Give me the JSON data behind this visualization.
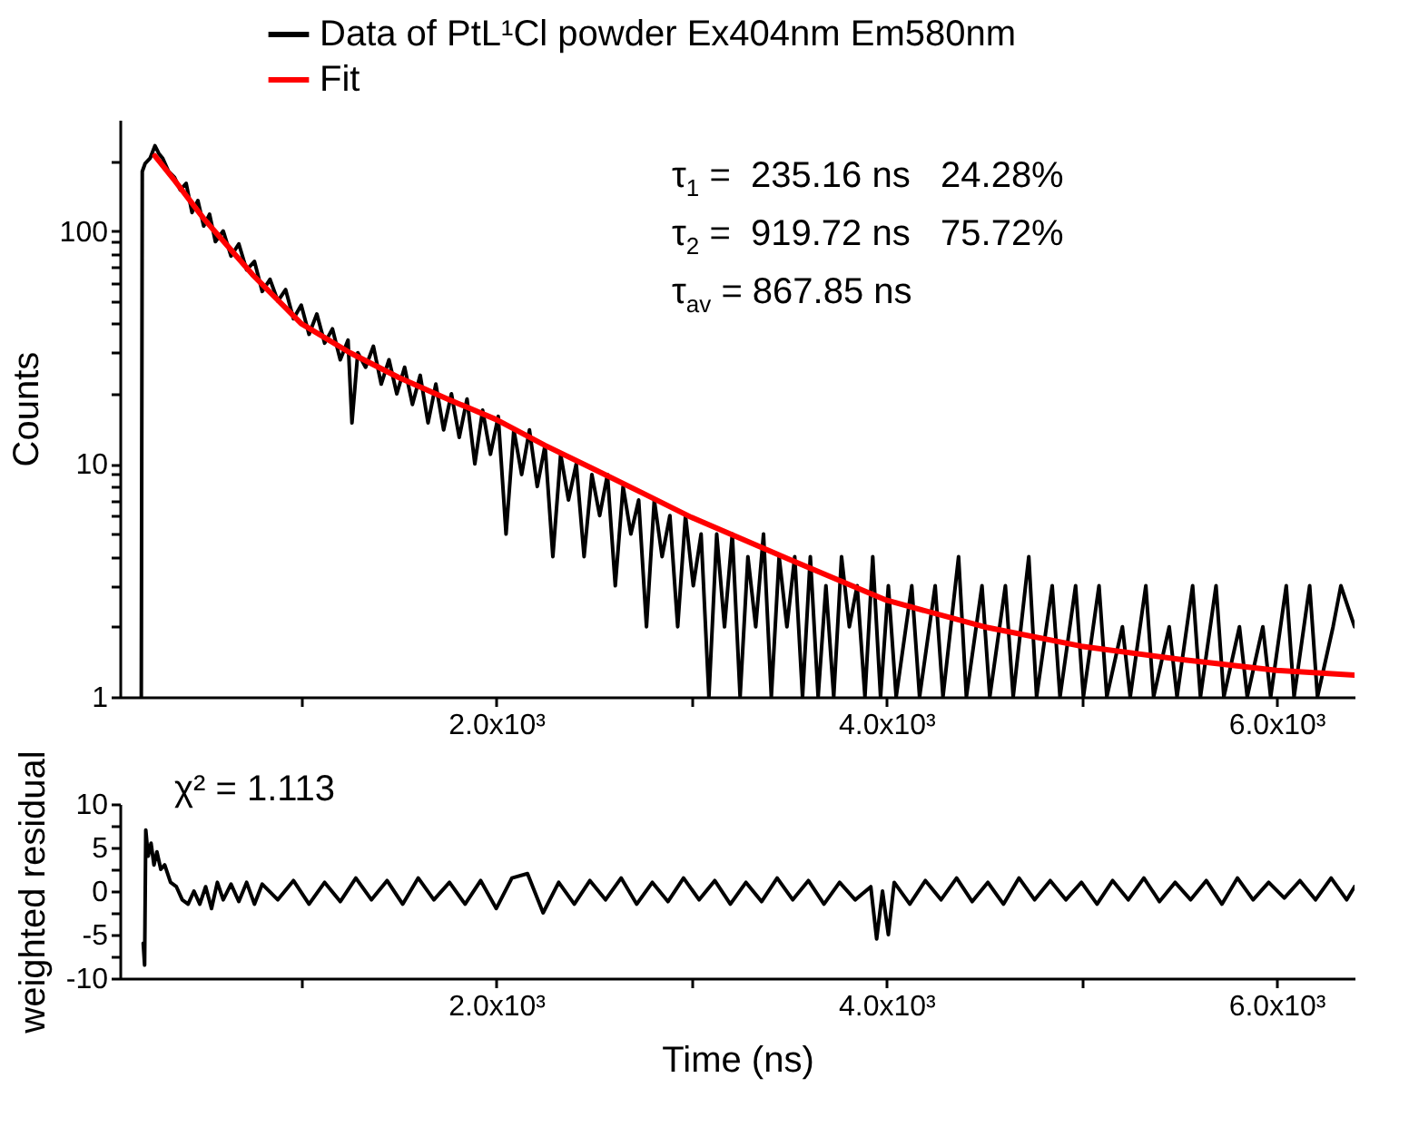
{
  "chart_data": [
    {
      "type": "line",
      "ylabel": "Counts",
      "log": "y",
      "legend": "top",
      "grid": false,
      "xlim": [
        70,
        6400
      ],
      "ylim": [
        1,
        300
      ],
      "xticks": [
        {
          "value": 1000,
          "label": null
        },
        {
          "value": 2000,
          "label": "2.0x10³"
        },
        {
          "value": 3000,
          "label": null
        },
        {
          "value": 4000,
          "label": "4.0x10³"
        },
        {
          "value": 5000,
          "label": null
        },
        {
          "value": 6000,
          "label": "6.0x10³"
        }
      ],
      "yticks": [
        1,
        {
          "value": 2,
          "label": null
        },
        {
          "value": 3,
          "label": null
        },
        {
          "value": 4,
          "label": null
        },
        {
          "value": 5,
          "label": null
        },
        {
          "value": 6,
          "label": null
        },
        {
          "value": 7,
          "label": null
        },
        {
          "value": 8,
          "label": null
        },
        {
          "value": 9,
          "label": null
        },
        10,
        {
          "value": 20,
          "label": null
        },
        {
          "value": 30,
          "label": null
        },
        {
          "value": 40,
          "label": null
        },
        {
          "value": 50,
          "label": null
        },
        {
          "value": 60,
          "label": null
        },
        {
          "value": 70,
          "label": null
        },
        {
          "value": 80,
          "label": null
        },
        {
          "value": 90,
          "label": null
        },
        100,
        {
          "value": 200,
          "label": null
        }
      ],
      "annotations": [
        "τ$_{1}$ =  235.16 ns   24.28%",
        "τ$_{2}$ =  919.72 ns   75.72%",
        "τ$_{av}$ = 867.85 ns"
      ],
      "series": [
        {
          "name": "Data of PtL¹Cl powder Ex404nm Em580nm",
          "color": "#000000",
          "x": [
            180,
            185,
            200,
            225,
            250,
            270,
            290,
            320,
            350,
            380,
            410,
            440,
            470,
            500,
            530,
            560,
            600,
            640,
            680,
            720,
            760,
            800,
            840,
            880,
            920,
            960,
            1000,
            1040,
            1080,
            1120,
            1160,
            1200,
            1240,
            1260,
            1290,
            1330,
            1370,
            1410,
            1450,
            1490,
            1530,
            1570,
            1610,
            1650,
            1690,
            1730,
            1770,
            1810,
            1850,
            1890,
            1930,
            1970,
            2010,
            2050,
            2090,
            2130,
            2170,
            2210,
            2250,
            2290,
            2330,
            2370,
            2410,
            2450,
            2490,
            2530,
            2570,
            2610,
            2650,
            2690,
            2730,
            2770,
            2810,
            2850,
            2890,
            2930,
            2970,
            3010,
            3050,
            3090,
            3130,
            3170,
            3210,
            3250,
            3290,
            3330,
            3370,
            3410,
            3450,
            3490,
            3530,
            3570,
            3610,
            3650,
            3690,
            3730,
            3770,
            3810,
            3850,
            3890,
            3930,
            3970,
            4010,
            4050,
            4130,
            4170,
            4250,
            4290,
            4370,
            4410,
            4490,
            4530,
            4610,
            4650,
            4730,
            4770,
            4850,
            4890,
            4970,
            5010,
            5090,
            5130,
            5210,
            5250,
            5330,
            5370,
            5450,
            5490,
            5570,
            5610,
            5690,
            5730,
            5810,
            5850,
            5930,
            5970,
            6050,
            6090,
            6170,
            6210,
            6290,
            6330,
            6400
          ],
          "values": [
            1,
            180,
            195,
            205,
            232,
            215,
            205,
            180,
            170,
            150,
            160,
            120,
            135,
            105,
            118,
            90,
            100,
            78,
            88,
            68,
            74,
            55,
            62,
            50,
            56,
            42,
            48,
            36,
            44,
            33,
            38,
            28,
            34,
            15,
            30,
            26,
            32,
            22,
            28,
            20,
            26,
            18,
            24,
            15,
            22,
            14,
            20,
            13,
            19,
            10,
            17,
            11,
            16,
            5,
            14,
            9,
            14,
            8,
            12,
            4,
            11,
            7,
            10,
            4,
            9,
            6,
            9,
            3,
            8,
            5,
            7,
            2,
            7,
            4,
            6,
            2,
            6,
            3,
            5,
            1,
            5,
            2,
            5,
            1,
            4,
            2,
            5,
            1,
            4,
            2,
            4,
            1,
            4,
            1,
            3,
            1,
            4,
            2,
            3,
            1,
            4,
            1,
            3,
            1,
            3,
            1,
            3,
            1,
            4,
            1,
            3,
            1,
            3,
            1,
            4,
            1,
            3,
            1,
            3,
            1,
            3,
            1,
            2,
            1,
            3,
            1,
            2,
            1,
            3,
            1,
            3,
            1,
            2,
            1,
            2,
            1,
            3,
            1,
            3,
            1,
            2,
            3,
            2
          ]
        },
        {
          "name": "Fit",
          "color": "#ff0000",
          "x": [
            250,
            350,
            500,
            750,
            1000,
            1250,
            1500,
            1750,
            2000,
            2250,
            2500,
            2750,
            3000,
            3500,
            4000,
            4500,
            5000,
            5500,
            6000,
            6400
          ],
          "values": [
            210,
            165,
            113,
            65,
            40,
            30,
            23.5,
            19,
            15.5,
            12,
            9.5,
            7.5,
            5.9,
            3.9,
            2.6,
            2.0,
            1.65,
            1.45,
            1.3,
            1.24
          ]
        }
      ]
    },
    {
      "type": "line",
      "xlabel": "Time (ns)",
      "ylabel": "weighted residual",
      "grid": false,
      "xlim": [
        70,
        6400
      ],
      "ylim": [
        -10,
        10
      ],
      "xticks": [
        {
          "value": 1000,
          "label": null
        },
        {
          "value": 2000,
          "label": "2.0x10³"
        },
        {
          "value": 3000,
          "label": null
        },
        {
          "value": 4000,
          "label": "4.0x10³"
        },
        {
          "value": 5000,
          "label": null
        },
        {
          "value": 6000,
          "label": "6.0x10³"
        }
      ],
      "yticks": [
        -10,
        {
          "value": -7.5,
          "label": null
        },
        -5,
        {
          "value": -2.5,
          "label": null
        },
        0,
        {
          "value": 2.5,
          "label": null
        },
        5,
        {
          "value": 7.5,
          "label": null
        },
        10
      ],
      "annotations": [
        "χ² = 1.113"
      ],
      "series": [
        {
          "color": "#000000",
          "x": [
            190,
            197,
            203,
            215,
            230,
            245,
            260,
            280,
            300,
            330,
            360,
            390,
            420,
            450,
            480,
            510,
            540,
            570,
            600,
            640,
            680,
            720,
            760,
            800,
            880,
            960,
            1040,
            1120,
            1200,
            1280,
            1360,
            1440,
            1520,
            1600,
            1680,
            1760,
            1840,
            1920,
            2000,
            2080,
            2160,
            2240,
            2320,
            2400,
            2480,
            2560,
            2640,
            2720,
            2800,
            2880,
            2960,
            3040,
            3120,
            3200,
            3280,
            3360,
            3440,
            3520,
            3600,
            3680,
            3760,
            3840,
            3920,
            3950,
            3980,
            4010,
            4040,
            4120,
            4200,
            4280,
            4360,
            4440,
            4520,
            4600,
            4680,
            4760,
            4840,
            4920,
            5000,
            5080,
            5160,
            5240,
            5320,
            5400,
            5480,
            5560,
            5640,
            5720,
            5800,
            5880,
            5960,
            6040,
            6120,
            6200,
            6280,
            6360,
            6400
          ],
          "values": [
            -6,
            -8.5,
            7,
            4,
            5.5,
            3,
            4.5,
            2.5,
            3,
            1,
            0.5,
            -1,
            -1.5,
            0,
            -1.5,
            0.5,
            -2,
            1,
            -1,
            0.8,
            -1.2,
            1,
            -1.5,
            0.8,
            -1,
            1.2,
            -1.5,
            1,
            -1.2,
            1.5,
            -1,
            1.2,
            -1.5,
            1.5,
            -1,
            1,
            -1.5,
            1.2,
            -2,
            1.5,
            2,
            -2.5,
            1,
            -1.5,
            1.2,
            -1,
            1.5,
            -1.5,
            1,
            -1.2,
            1.5,
            -1,
            1.2,
            -1.5,
            1,
            -1.2,
            1.5,
            -1,
            1.2,
            -1.5,
            1,
            -1,
            0.5,
            -5.5,
            0,
            -5,
            1,
            -1.5,
            1.2,
            -1,
            1.5,
            -1.2,
            1,
            -1.5,
            1.5,
            -1,
            1.2,
            -1,
            1,
            -1.5,
            1.2,
            -1,
            1.5,
            -1.2,
            1,
            -1,
            1.2,
            -1.5,
            1.5,
            -1,
            1,
            -0.8,
            1.2,
            -1,
            1.5,
            -1,
            0.5
          ]
        }
      ]
    }
  ]
}
